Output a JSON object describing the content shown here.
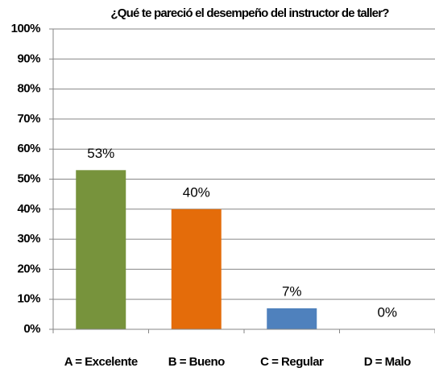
{
  "chart_data": {
    "type": "bar",
    "title": "¿Qué te pareció el desempeño del instructor de taller?",
    "categories": [
      "A = Excelente",
      "B =  Bueno",
      "C = Regular",
      "D = Malo"
    ],
    "values": [
      53,
      40,
      7,
      0
    ],
    "value_labels": [
      "53%",
      "40%",
      "7%",
      "0%"
    ],
    "colors": [
      "#77933c",
      "#e46c0a",
      "#4f81bd",
      "#8064a2"
    ],
    "ylim": [
      0,
      100
    ],
    "yticks": [
      {
        "value": 0,
        "label": "0%"
      },
      {
        "value": 10,
        "label": "10%"
      },
      {
        "value": 20,
        "label": "20%"
      },
      {
        "value": 30,
        "label": "30%"
      },
      {
        "value": 40,
        "label": "40%"
      },
      {
        "value": 50,
        "label": "50%"
      },
      {
        "value": 60,
        "label": "60%"
      },
      {
        "value": 70,
        "label": "70%"
      },
      {
        "value": 80,
        "label": "80%"
      },
      {
        "value": 90,
        "label": "90%"
      },
      {
        "value": 100,
        "label": "100%"
      }
    ],
    "grid": true
  }
}
